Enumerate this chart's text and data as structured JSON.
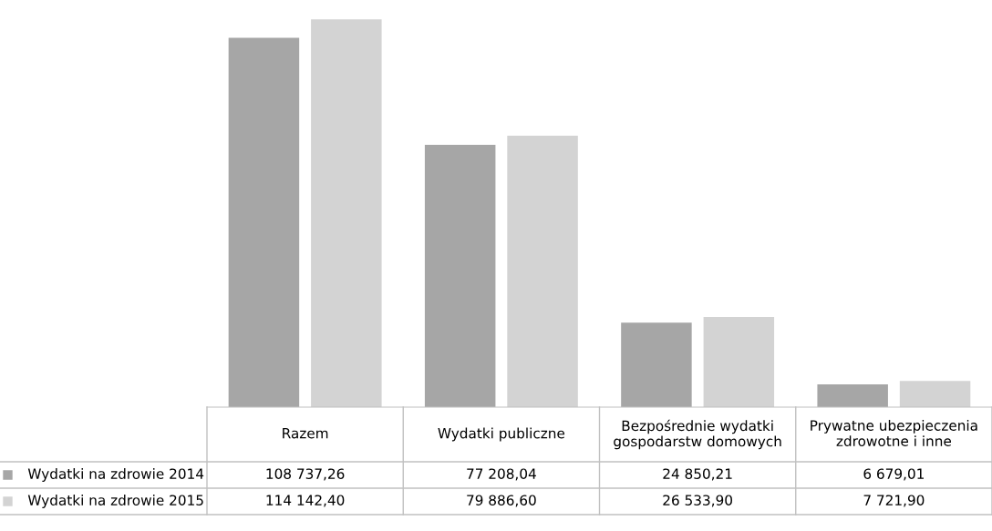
{
  "chart_data": {
    "type": "bar",
    "categories": [
      "Razem",
      "Wydatki publiczne",
      "Bezpośrednie wydatki\ngospodarstw domowych",
      "Prywatne ubezpieczenia\nzdrowotne i inne"
    ],
    "series": [
      {
        "name": "Wydatki na zdrowie 2014",
        "color": "#a6a6a6",
        "values": [
          108737.26,
          77208.04,
          24850.21,
          6679.01
        ],
        "value_labels": [
          "108 737,26",
          "77 208,04",
          "24 850,21",
          "6 679,01"
        ]
      },
      {
        "name": "Wydatki na zdrowie 2015",
        "color": "#d3d3d3",
        "values": [
          114142.4,
          79886.6,
          26533.9,
          7721.9
        ],
        "value_labels": [
          "114 142,40",
          "79 886,60",
          "26 533,90",
          "7 721,90"
        ]
      }
    ],
    "legend": "bottom left"
  }
}
